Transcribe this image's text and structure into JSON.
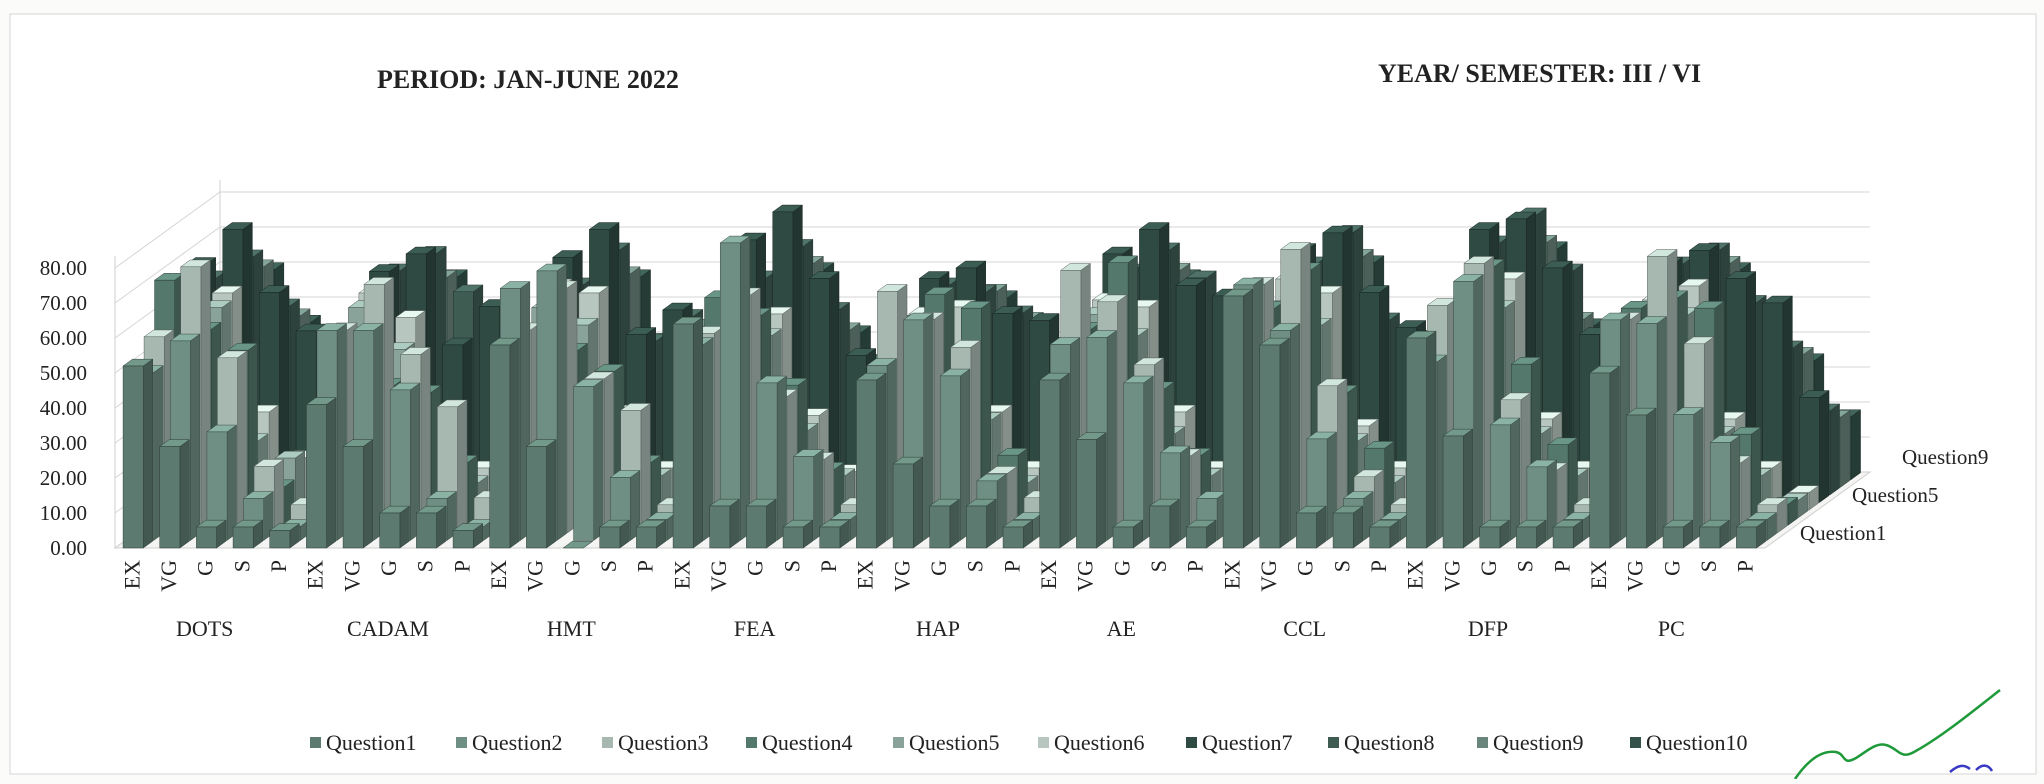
{
  "header": {
    "period": "PERIOD: JAN-JUNE 2022",
    "year_semester": "YEAR/ SEMESTER: III / VI"
  },
  "chart_data": {
    "type": "bar",
    "subtype": "3d-clustered-column",
    "title": "",
    "xlabel": "",
    "ylabel": "",
    "ylim": [
      0,
      80
    ],
    "y_ticks": [
      "0.00",
      "10.00",
      "20.00",
      "30.00",
      "40.00",
      "50.00",
      "60.00",
      "70.00",
      "80.00"
    ],
    "grid": true,
    "legend_position": "bottom",
    "ratings": [
      "EX",
      "VG",
      "G",
      "S",
      "P"
    ],
    "groups": [
      "DOTS",
      "CADAM",
      "HMT",
      "FEA",
      "HAP",
      "AE",
      "CCL",
      "DFP",
      "PC"
    ],
    "depth_axis_labels": [
      "Question1",
      "Question5",
      "Question9"
    ],
    "series": [
      {
        "name": "Question1",
        "values": [
          52,
          29,
          6,
          6,
          5,
          41,
          29,
          10,
          10,
          5,
          58,
          29,
          0,
          6,
          6,
          64,
          12,
          12,
          6,
          6,
          48,
          24,
          12,
          12,
          6,
          48,
          31,
          6,
          12,
          6,
          72,
          58,
          10,
          10,
          6,
          60,
          32,
          6,
          6,
          6,
          50,
          38,
          6,
          6,
          6
        ]
      },
      {
        "name": "Question2",
        "values": [
          48,
          57,
          31,
          12,
          4,
          60,
          60,
          43,
          12,
          4,
          72,
          77,
          44,
          18,
          6,
          56,
          85,
          45,
          24,
          6,
          50,
          63,
          47,
          17,
          6,
          56,
          58,
          45,
          25,
          12,
          73,
          60,
          29,
          12,
          6,
          51,
          74,
          33,
          21,
          6,
          63,
          62,
          36,
          28,
          6
        ]
      },
      {
        "name": "Question3",
        "values": [
          56,
          76,
          50,
          19,
          8,
          58,
          71,
          51,
          36,
          10,
          58,
          70,
          44,
          35,
          8,
          57,
          68,
          39,
          21,
          8,
          69,
          61,
          53,
          17,
          10,
          75,
          66,
          48,
          22,
          8,
          71,
          81,
          42,
          16,
          8,
          65,
          77,
          38,
          18,
          8,
          61,
          79,
          54,
          20,
          8
        ]
      },
      {
        "name": "Question4",
        "values": [
          70,
          56,
          50,
          11,
          6,
          48,
          40,
          38,
          18,
          6,
          55,
          50,
          44,
          18,
          6,
          65,
          60,
          40,
          16,
          6,
          58,
          66,
          62,
          20,
          6,
          56,
          75,
          39,
          20,
          6,
          62,
          73,
          38,
          22,
          6,
          58,
          74,
          46,
          23,
          6,
          62,
          65,
          62,
          26,
          6
        ]
      },
      {
        "name": "Question5",
        "values": [
          48,
          60,
          22,
          17,
          5,
          60,
          48,
          20,
          10,
          5,
          60,
          55,
          25,
          12,
          5,
          59,
          52,
          25,
          12,
          5,
          53,
          46,
          28,
          10,
          5,
          58,
          52,
          24,
          12,
          5,
          60,
          55,
          22,
          10,
          5,
          61,
          60,
          24,
          12,
          5,
          56,
          58,
          24,
          12,
          5
        ]
      },
      {
        "name": "Question6",
        "values": [
          52,
          62,
          28,
          15,
          5,
          62,
          55,
          25,
          12,
          5,
          64,
          62,
          28,
          12,
          5,
          61,
          56,
          27,
          11,
          5,
          56,
          58,
          28,
          12,
          5,
          60,
          58,
          28,
          12,
          5,
          66,
          62,
          24,
          12,
          5,
          64,
          66,
          26,
          12,
          5,
          60,
          64,
          26,
          12,
          5
        ]
      },
      {
        "name": "Question7",
        "values": [
          68,
          78,
          60,
          49,
          29,
          66,
          71,
          45,
          56,
          25,
          70,
          78,
          48,
          55,
          32,
          75,
          83,
          64,
          42,
          30,
          64,
          67,
          54,
          52,
          28,
          71,
          78,
          62,
          59,
          30,
          72,
          77,
          60,
          50,
          30,
          78,
          81,
          67,
          48,
          28,
          68,
          72,
          64,
          57,
          30
        ]
      },
      {
        "name": "Question8",
        "values": [
          62,
          68,
          54,
          42,
          26,
          64,
          69,
          58,
          43,
          24,
          60,
          70,
          44,
          51,
          25,
          62,
          71,
          53,
          38,
          24,
          60,
          58,
          52,
          43,
          22,
          64,
          70,
          62,
          47,
          24,
          66,
          75,
          50,
          45,
          24,
          72,
          80,
          64,
          44,
          24,
          66,
          70,
          55,
          42,
          24
        ]
      },
      {
        "name": "Question9",
        "values": [
          58,
          63,
          49,
          40,
          20,
          58,
          60,
          42,
          40,
          20,
          56,
          61,
          42,
          46,
          20,
          58,
          64,
          45,
          36,
          20,
          54,
          56,
          48,
          40,
          18,
          58,
          62,
          50,
          44,
          20,
          60,
          66,
          44,
          40,
          20,
          62,
          70,
          48,
          40,
          20,
          60,
          64,
          48,
          38,
          20
        ]
      },
      {
        "name": "Question10",
        "values": [
          55,
          60,
          45,
          35,
          18,
          55,
          58,
          40,
          36,
          18,
          50,
          58,
          40,
          42,
          18,
          54,
          60,
          42,
          32,
          18,
          50,
          52,
          44,
          36,
          16,
          54,
          58,
          46,
          40,
          18,
          56,
          62,
          40,
          36,
          18,
          58,
          66,
          44,
          36,
          18,
          56,
          60,
          44,
          34,
          18
        ]
      }
    ],
    "colors": {
      "Question1": "#5c7a6f",
      "Question2": "#6f8f84",
      "Question3": "#a7b8b1",
      "Question4": "#54786c",
      "Question5": "#8aa39a",
      "Question6": "#b8c6c0",
      "Question7": "#2f4a42",
      "Question8": "#3f5c53",
      "Question9": "#6a857c",
      "Question10": "#34524a"
    }
  }
}
